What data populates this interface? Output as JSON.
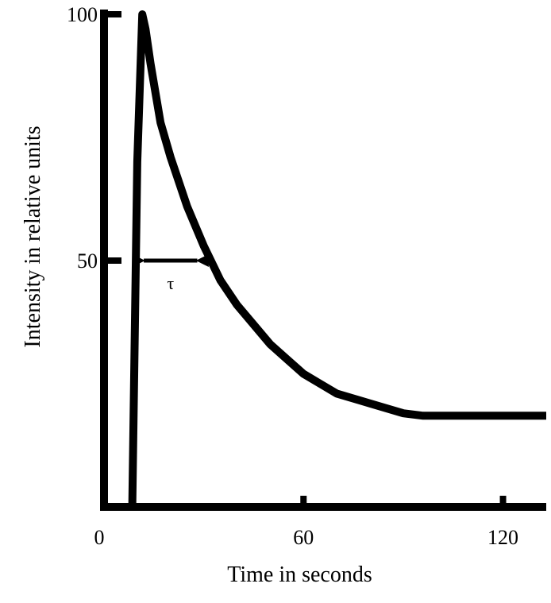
{
  "chart_data": {
    "type": "line",
    "title": "",
    "xlabel": "Time in seconds",
    "ylabel": "Intensity in relative units",
    "xlim": [
      0,
      133
    ],
    "ylim": [
      0,
      100
    ],
    "x_ticks": [
      {
        "value": 0,
        "label": "0",
        "mark": false
      },
      {
        "value": 60,
        "label": "60",
        "mark": true
      },
      {
        "value": 120,
        "label": "120",
        "mark": true
      }
    ],
    "y_ticks": [
      {
        "value": 50,
        "label": "50"
      },
      {
        "value": 100,
        "label": "100"
      }
    ],
    "grid": false,
    "legend": "none",
    "series": [
      {
        "points": [
          [
            8.5,
            0
          ],
          [
            10,
            70
          ],
          [
            11,
            90
          ],
          [
            11.5,
            100
          ],
          [
            12.5,
            97
          ],
          [
            14,
            90
          ],
          [
            17,
            78
          ],
          [
            20,
            71
          ],
          [
            25,
            61
          ],
          [
            30,
            53
          ],
          [
            35,
            46
          ],
          [
            40,
            41
          ],
          [
            45,
            37
          ],
          [
            50,
            33
          ],
          [
            55,
            30
          ],
          [
            60,
            27
          ],
          [
            65,
            25
          ],
          [
            70,
            23
          ],
          [
            80,
            21
          ],
          [
            90,
            19
          ],
          [
            96,
            18.5
          ],
          [
            110,
            18.5
          ],
          [
            133,
            18.5
          ]
        ]
      }
    ],
    "annotations": [
      {
        "type": "double-arrow",
        "x_start": 11,
        "x_end": 29,
        "y": 50,
        "label": "τ"
      }
    ],
    "colors": {
      "line": "#000000",
      "axis": "#000000"
    }
  }
}
